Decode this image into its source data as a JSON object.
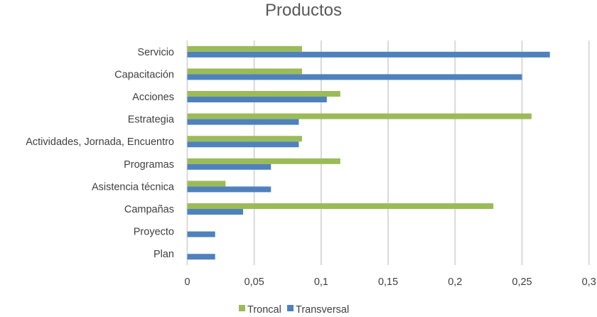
{
  "chart_data": {
    "type": "bar",
    "orientation": "horizontal",
    "title": "Productos",
    "xlabel": "",
    "ylabel": "",
    "categories": [
      "Servicio",
      "Capacitación",
      "Acciones",
      "Estrategia",
      "Actividades, Jornada, Encuentro",
      "Programas",
      "Asistencia técnica",
      "Campañas",
      "Proyecto",
      "Plan"
    ],
    "series": [
      {
        "name": "Troncal",
        "color": "#9BBB59",
        "values": [
          0.0857,
          0.0857,
          0.1143,
          0.2571,
          0.0857,
          0.1143,
          0.0286,
          0.2286,
          0,
          0
        ]
      },
      {
        "name": "Transversal",
        "color": "#4F81BD",
        "values": [
          0.2708,
          0.25,
          0.1042,
          0.0833,
          0.0833,
          0.0625,
          0.0625,
          0.0417,
          0.0208,
          0.0208
        ]
      }
    ],
    "xlim": [
      0,
      0.3
    ],
    "xticks": [
      0,
      0.05,
      0.1,
      0.15,
      0.2,
      0.25,
      0.3
    ],
    "xtick_labels": [
      "0",
      "0,05",
      "0,1",
      "0,15",
      "0,2",
      "0,25",
      "0,3"
    ],
    "grid": "vertical",
    "gridline_color": "#D9D9D9",
    "legend_position": "bottom"
  }
}
